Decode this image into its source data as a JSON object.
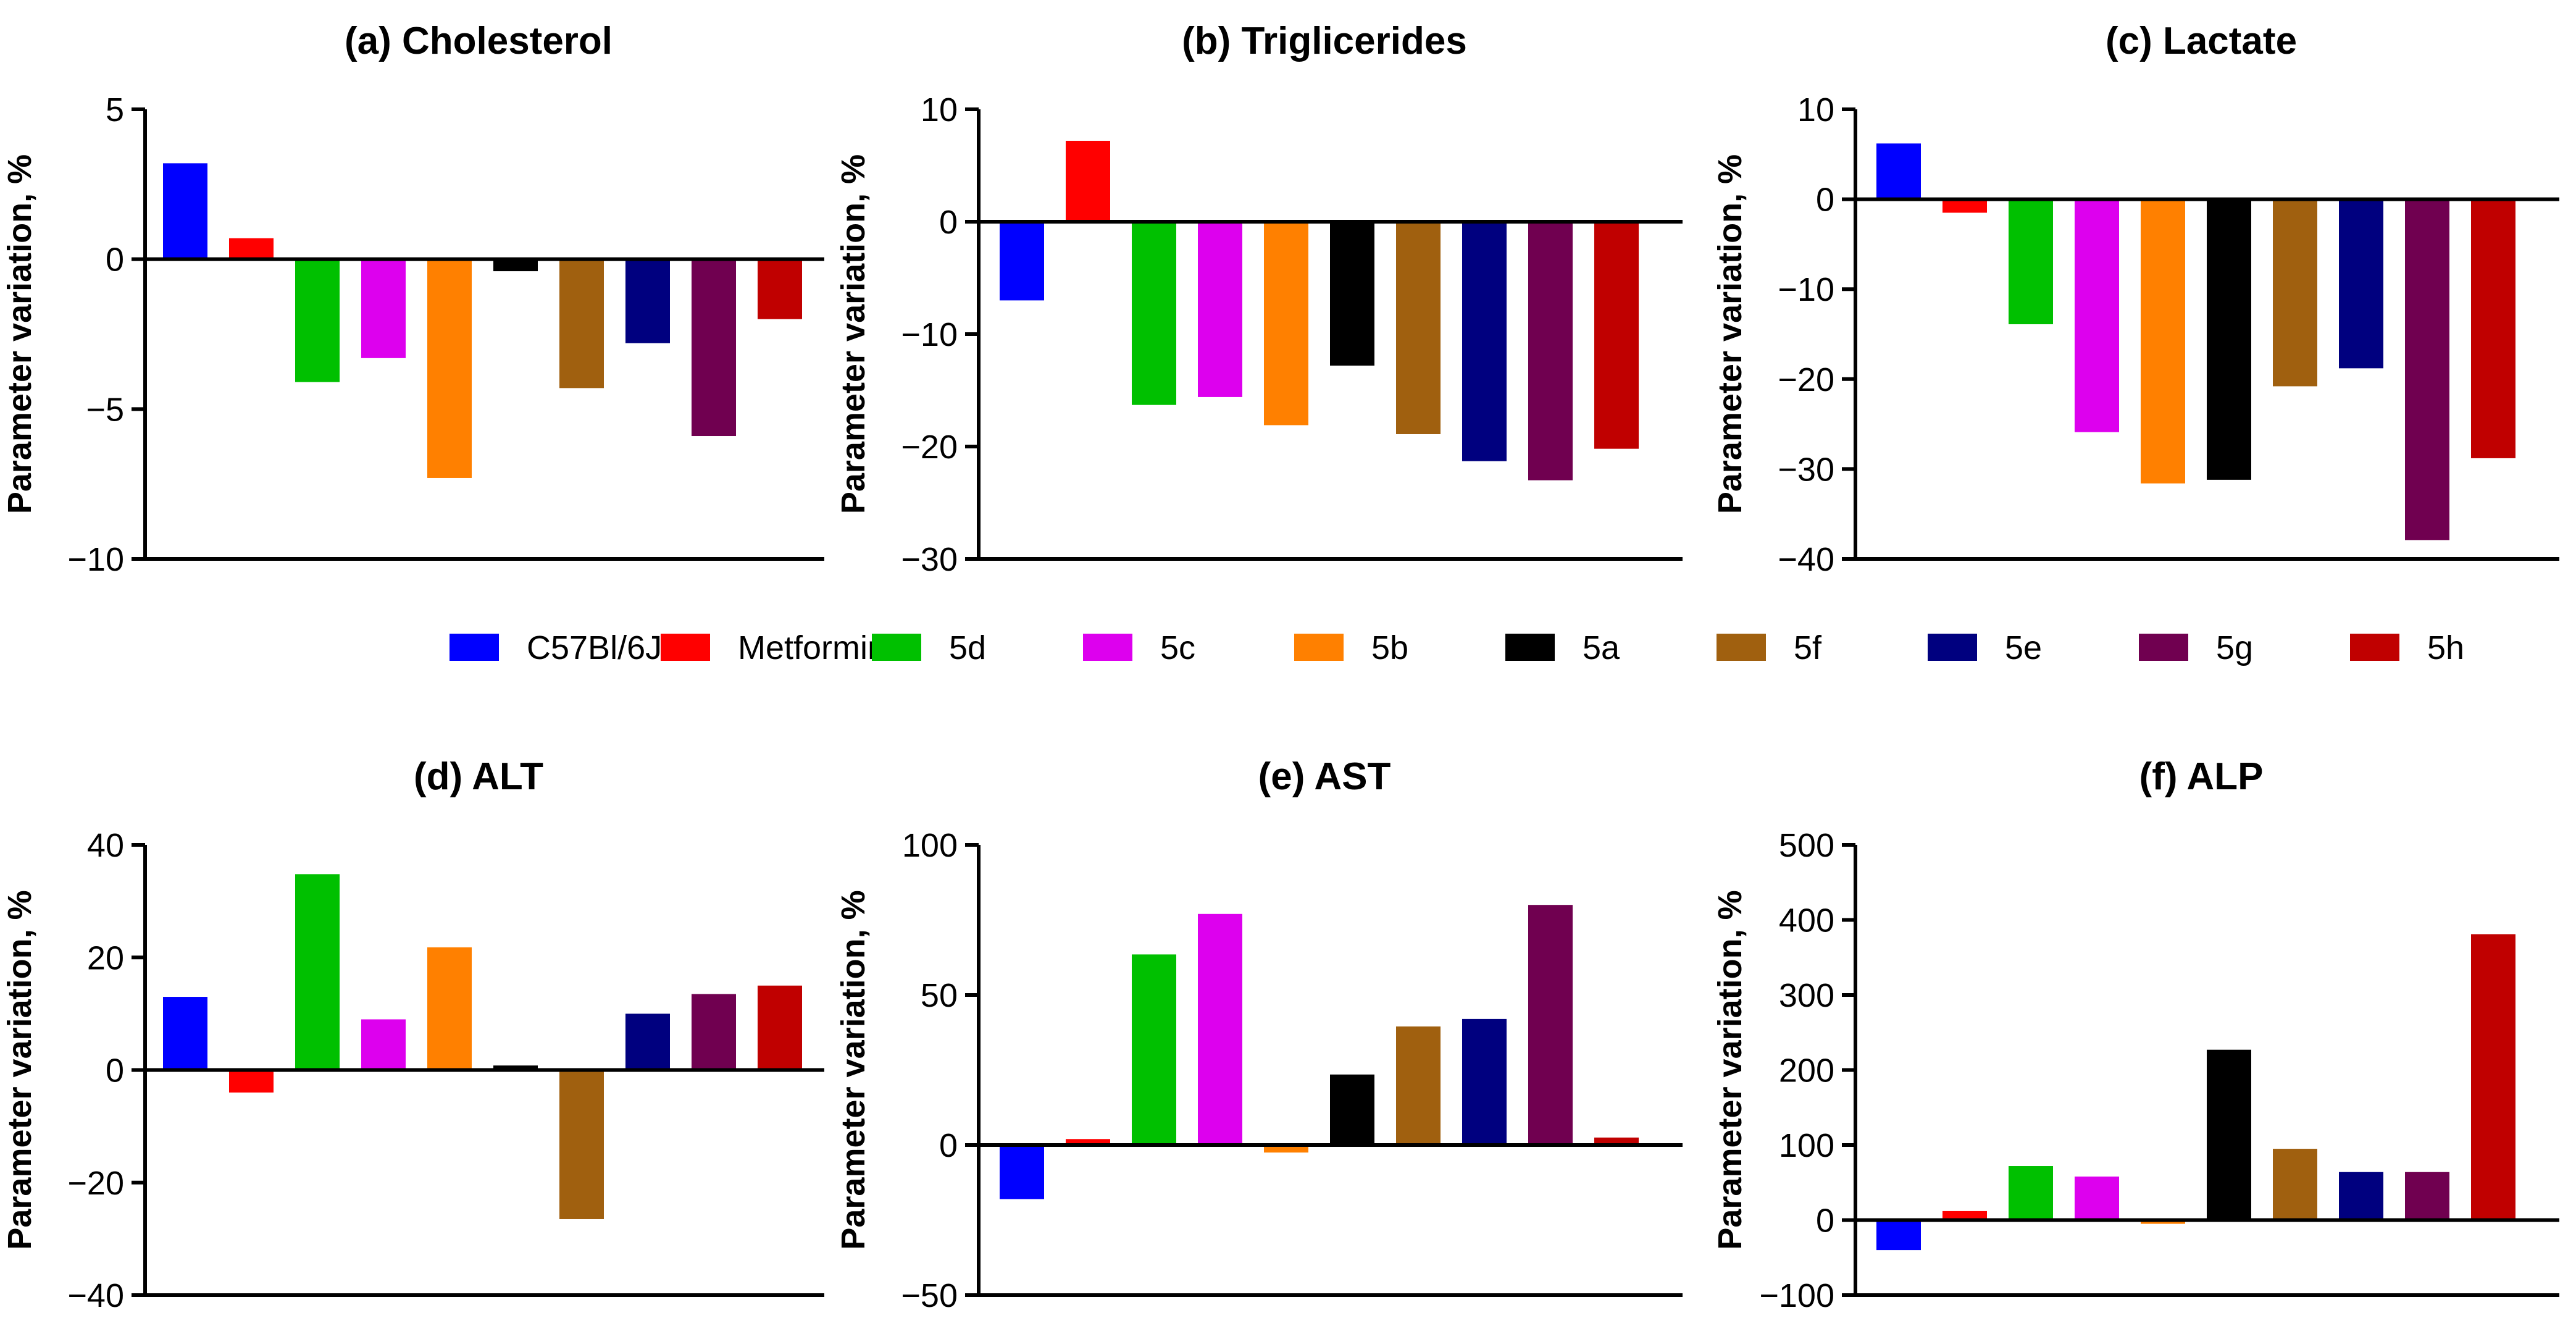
{
  "legend": {
    "entries": [
      {
        "label": "C57Bl/6J",
        "color": "#0000FF"
      },
      {
        "label": "Metformin",
        "color": "#FF0000"
      },
      {
        "label": "5d",
        "color": "#00C000"
      },
      {
        "label": "5c",
        "color": "#DD00EE"
      },
      {
        "label": "5b",
        "color": "#FF8000"
      },
      {
        "label": "5a",
        "color": "#000000"
      },
      {
        "label": "5f",
        "color": "#A0600F"
      },
      {
        "label": "5e",
        "color": "#00007F"
      },
      {
        "label": "5g",
        "color": "#700050"
      },
      {
        "label": "5h",
        "color": "#C00000"
      }
    ]
  },
  "chart_data": [
    {
      "type": "bar",
      "title": "(a) Cholesterol",
      "ylabel": "Parameter variation, %",
      "xlabel": "",
      "categories": [
        "C57Bl/6J",
        "Metformin",
        "5d",
        "5c",
        "5b",
        "5a",
        "5f",
        "5e",
        "5g",
        "5h"
      ],
      "values": [
        3.2,
        0.7,
        -4.1,
        -3.3,
        -7.3,
        -0.4,
        -4.3,
        -2.8,
        -5.9,
        -2.0
      ],
      "ylim": [
        -10,
        5
      ],
      "yticks": [
        5,
        0,
        -5,
        -10
      ],
      "yticklabels": [
        "5",
        "0",
        "−5",
        "−10"
      ]
    },
    {
      "type": "bar",
      "title": "(b) Triglicerides",
      "ylabel": "Parameter variation, %",
      "xlabel": "",
      "categories": [
        "C57Bl/6J",
        "Metformin",
        "5d",
        "5c",
        "5b",
        "5a",
        "5f",
        "5e",
        "5g",
        "5h"
      ],
      "values": [
        -7.0,
        7.2,
        -16.3,
        -15.6,
        -18.1,
        -12.8,
        -18.9,
        -21.3,
        -23.0,
        -20.2
      ],
      "ylim": [
        -30,
        10
      ],
      "yticks": [
        10,
        0,
        -10,
        -20,
        -30
      ],
      "yticklabels": [
        "10",
        "0",
        "−10",
        "−20",
        "−30"
      ]
    },
    {
      "type": "bar",
      "title": "(c) Lactate",
      "ylabel": "Parameter variation, %",
      "xlabel": "",
      "categories": [
        "C57Bl/6J",
        "Metformin",
        "5d",
        "5c",
        "5b",
        "5a",
        "5f",
        "5e",
        "5g",
        "5h"
      ],
      "values": [
        6.2,
        -1.5,
        -13.9,
        -25.9,
        -31.6,
        -31.2,
        -20.8,
        -18.8,
        -37.9,
        -28.8
      ],
      "ylim": [
        -40,
        10
      ],
      "yticks": [
        10,
        0,
        -10,
        -20,
        -30,
        -40
      ],
      "yticklabels": [
        "10",
        "0",
        "−10",
        "−20",
        "−30",
        "−40"
      ]
    },
    {
      "type": "bar",
      "title": "(d) ALT",
      "ylabel": "Parameter variation, %",
      "xlabel": "",
      "categories": [
        "C57Bl/6J",
        "Metformin",
        "5d",
        "5c",
        "5b",
        "5a",
        "5f",
        "5e",
        "5g",
        "5h"
      ],
      "values": [
        13.0,
        -4.0,
        34.8,
        9.0,
        21.8,
        0.8,
        -26.5,
        10.0,
        13.5,
        15.0
      ],
      "ylim": [
        -40,
        40
      ],
      "yticks": [
        40,
        20,
        0,
        -20,
        -40
      ],
      "yticklabels": [
        "40",
        "20",
        "0",
        "−20",
        "−40"
      ]
    },
    {
      "type": "bar",
      "title": "(e) AST",
      "ylabel": "Parameter variation, %",
      "xlabel": "",
      "categories": [
        "C57Bl/6J",
        "Metformin",
        "5d",
        "5c",
        "5b",
        "5a",
        "5f",
        "5e",
        "5g",
        "5h"
      ],
      "values": [
        -18.0,
        2.0,
        63.5,
        77.0,
        -2.5,
        23.5,
        39.5,
        42.0,
        80.0,
        2.5
      ],
      "ylim": [
        -50,
        100
      ],
      "yticks": [
        100,
        50,
        0,
        -50
      ],
      "yticklabels": [
        "100",
        "50",
        "0",
        "−50"
      ]
    },
    {
      "type": "bar",
      "title": "(f) ALP",
      "ylabel": "Parameter variation, %",
      "xlabel": "",
      "categories": [
        "C57Bl/6J",
        "Metformin",
        "5d",
        "5c",
        "5b",
        "5a",
        "5f",
        "5e",
        "5g",
        "5h"
      ],
      "values": [
        -40.0,
        12.0,
        72.0,
        58.0,
        -5.0,
        227.0,
        95.0,
        64.0,
        64.0,
        381.0
      ],
      "ylim": [
        -100,
        500
      ],
      "yticks": [
        500,
        400,
        300,
        200,
        100,
        0,
        -100
      ],
      "yticklabels": [
        "500",
        "400",
        "300",
        "200",
        "100",
        "0",
        "−100"
      ]
    }
  ]
}
